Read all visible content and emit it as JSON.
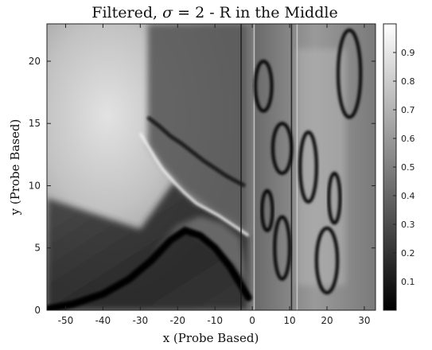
{
  "chart_data": {
    "type": "heatmap",
    "title_text": "Filtered, ",
    "title_sigma": "σ",
    "title_rest": " = 2 - R in the Middle",
    "xlabel": "x (Probe Based)",
    "ylabel": "y (Probe Based)",
    "xlim": [
      -55,
      33
    ],
    "ylim": [
      0,
      23
    ],
    "x_ticks": [
      -50,
      -40,
      -30,
      -20,
      -10,
      0,
      10,
      20,
      30
    ],
    "x_tick_labels": [
      "-50",
      "-40",
      "-30",
      "-20",
      "-10",
      "0",
      "10",
      "20",
      "30"
    ],
    "y_ticks": [
      0,
      5,
      10,
      15,
      20
    ],
    "y_tick_labels": [
      "0",
      "5",
      "10",
      "15",
      "20"
    ],
    "colorbar": {
      "colormap": "gray",
      "range": [
        0,
        1
      ],
      "ticks": [
        0.1,
        0.2,
        0.3,
        0.4,
        0.5,
        0.6,
        0.7,
        0.8,
        0.9
      ],
      "tick_labels": [
        "0.1",
        "0.2",
        "0.3",
        "0.4",
        "0.5",
        "0.6",
        "0.7",
        "0.8",
        "0.9"
      ]
    },
    "features": {
      "bright_ridge": [
        [
          -30,
          14.2
        ],
        [
          -28,
          13.2
        ],
        [
          -26,
          12.2
        ],
        [
          -24,
          11.3
        ],
        [
          -21,
          10.3
        ],
        [
          -18,
          9.4
        ],
        [
          -15,
          8.6
        ],
        [
          -12,
          8.1
        ],
        [
          -9,
          7.6
        ],
        [
          -6,
          7.0
        ],
        [
          -3,
          6.4
        ],
        [
          -1,
          6.0
        ]
      ],
      "left_vertical_line_x": -29,
      "dark_band_upper": [
        [
          -28,
          15.5
        ],
        [
          -25,
          14.8
        ],
        [
          -22,
          14.0
        ],
        [
          -19,
          13.4
        ],
        [
          -16,
          12.7
        ],
        [
          -13,
          12.0
        ],
        [
          -10,
          11.4
        ],
        [
          -7,
          10.8
        ],
        [
          -4,
          10.3
        ],
        [
          -2,
          10.0
        ]
      ],
      "dark_band_lower": [
        [
          -55,
          0.1
        ],
        [
          -48,
          0.5
        ],
        [
          -40,
          1.3
        ],
        [
          -33,
          2.5
        ],
        [
          -27,
          4.0
        ],
        [
          -22,
          5.6
        ],
        [
          -18,
          6.4
        ],
        [
          -14,
          6.0
        ],
        [
          -10,
          5.0
        ],
        [
          -6,
          3.5
        ],
        [
          -3,
          2.0
        ],
        [
          -1,
          1.0
        ]
      ],
      "vertical_lines_x": [
        -3,
        0.5,
        10.5,
        12
      ],
      "right_contours": [
        {
          "cx": 3,
          "cy": 18,
          "rx": 2.2,
          "ry": 2.0
        },
        {
          "cx": 8,
          "cy": 13,
          "rx": 2.5,
          "ry": 2.0
        },
        {
          "cx": 15,
          "cy": 11.5,
          "rx": 2.2,
          "ry": 2.8
        },
        {
          "cx": 22,
          "cy": 9,
          "rx": 1.5,
          "ry": 2.0
        },
        {
          "cx": 20,
          "cy": 4,
          "rx": 2.8,
          "ry": 2.6
        },
        {
          "cx": 26,
          "cy": 19,
          "rx": 3,
          "ry": 3.5
        },
        {
          "cx": 8,
          "cy": 5,
          "rx": 2,
          "ry": 2.5
        },
        {
          "cx": 4,
          "cy": 8,
          "rx": 1.4,
          "ry": 1.6
        }
      ]
    }
  }
}
